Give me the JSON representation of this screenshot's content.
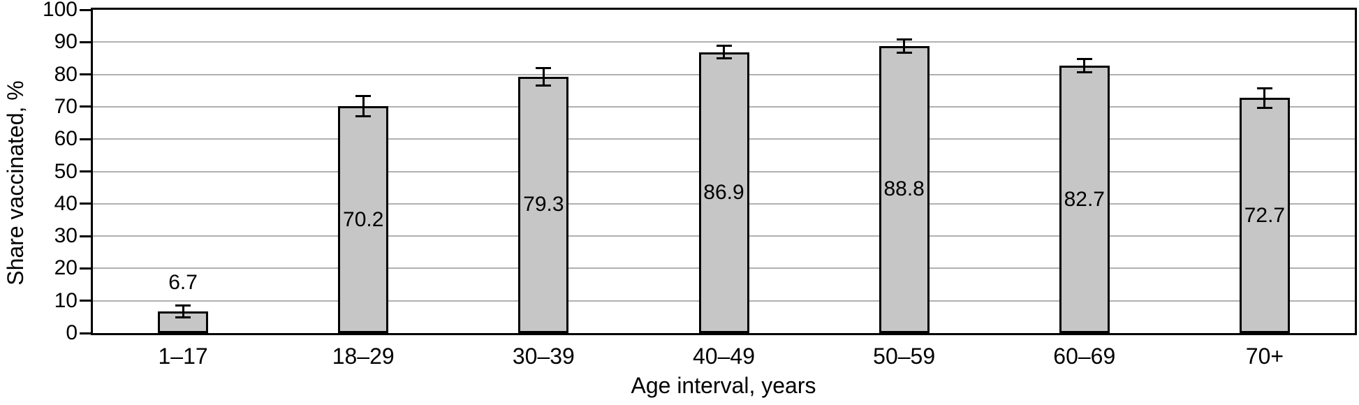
{
  "chart_data": {
    "type": "bar",
    "title": "",
    "categories": [
      "1–17",
      "18–29",
      "30–39",
      "40–49",
      "50–59",
      "60–69",
      "70+"
    ],
    "values": [
      6.7,
      70.2,
      79.3,
      86.9,
      88.8,
      82.7,
      72.7
    ],
    "errors": [
      2.2,
      3.5,
      3.0,
      2.2,
      2.4,
      2.3,
      3.4
    ],
    "value_labels": [
      "6.7",
      "70.2",
      "79.3",
      "86.9",
      "88.8",
      "82.7",
      "72.7"
    ],
    "xlabel": "Age interval, years",
    "ylabel": "Share vaccinated, %",
    "ylim": [
      0,
      100
    ],
    "yticks": [
      0,
      10,
      20,
      30,
      40,
      50,
      60,
      70,
      80,
      90,
      100
    ],
    "grid": true,
    "legend": "none",
    "bar_fill_color": "#c6c6c6",
    "bar_border_color": "#000000",
    "gridline_color": "#b0b0b0",
    "axis_color": "#000000",
    "text_color": "#000000"
  }
}
